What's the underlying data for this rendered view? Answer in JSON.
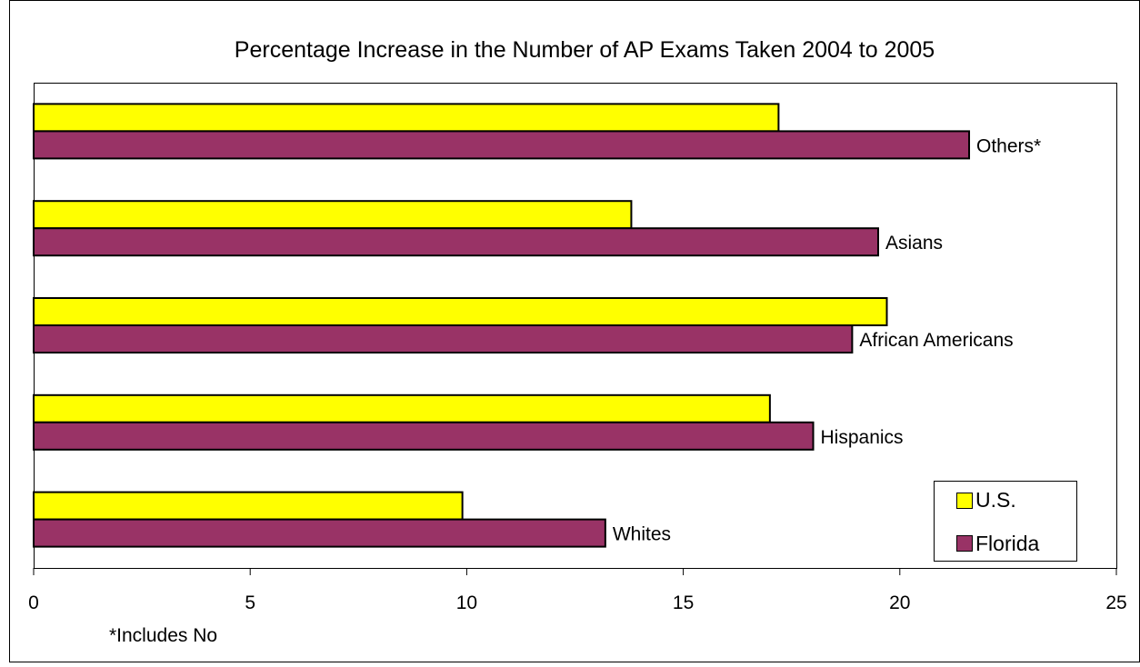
{
  "chart_data": {
    "type": "bar",
    "orientation": "horizontal",
    "title": "Percentage Increase in the Number of AP Exams Taken  2004 to 2005",
    "categories": [
      "Whites",
      "Hispanics",
      "African Americans",
      "Asians",
      "Others*"
    ],
    "series": [
      {
        "name": "U.S.",
        "values": [
          9.9,
          17.0,
          19.7,
          13.8,
          17.2
        ],
        "color": "#ffff00"
      },
      {
        "name": "Florida",
        "values": [
          13.2,
          18.0,
          18.9,
          19.5,
          21.6
        ],
        "color": "#993366"
      }
    ],
    "xlim": [
      0,
      25
    ],
    "xticks": [
      "0",
      "5",
      "10",
      "15",
      "20",
      "25"
    ],
    "xlabel": "",
    "ylabel": "",
    "grid": false,
    "legend_position": "bottom-right",
    "footnote": "*Includes No"
  }
}
